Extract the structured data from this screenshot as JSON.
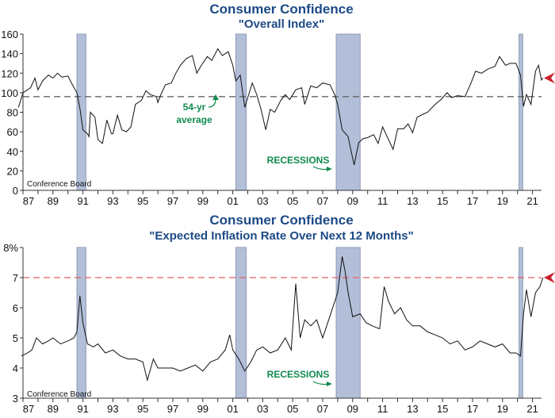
{
  "chart_data": [
    {
      "type": "line",
      "title": "Consumer Confidence",
      "subtitle": "\"Overall Index\"",
      "source": "Conference Board",
      "ylim": [
        0,
        160
      ],
      "yticks": [
        "0",
        "20",
        "40",
        "60",
        "80",
        "100",
        "120",
        "140",
        "160"
      ],
      "ytick_values": [
        0,
        20,
        40,
        60,
        80,
        100,
        120,
        140,
        160
      ],
      "xlim": [
        1986.7,
        2021.8
      ],
      "xticks": [
        "87",
        "89",
        "91",
        "93",
        "95",
        "97",
        "99",
        "01",
        "03",
        "05",
        "07",
        "09",
        "11",
        "13",
        "15",
        "17",
        "19",
        "21"
      ],
      "xtick_values": [
        1987,
        1989,
        1991,
        1993,
        1995,
        1997,
        1999,
        2001,
        2003,
        2005,
        2007,
        2009,
        2011,
        2013,
        2015,
        2017,
        2019,
        2021
      ],
      "reference_line": {
        "value": 96,
        "color": "#666666",
        "label": "54-yr average"
      },
      "annotations": {
        "average": [
          "54-yr",
          "average"
        ],
        "recessions": "RECESSIONS"
      },
      "latest_marker": 115,
      "recessions": [
        [
          1990.6,
          1991.2
        ],
        [
          2001.2,
          2001.9
        ],
        [
          2007.9,
          2009.5
        ],
        [
          2020.1,
          2020.35
        ]
      ],
      "series": [
        {
          "name": "Overall Index",
          "color": "#111111",
          "points": [
            [
              1986.7,
              85
            ],
            [
              1987,
              100
            ],
            [
              1987.5,
              105
            ],
            [
              1987.8,
              115
            ],
            [
              1988,
              103
            ],
            [
              1988.3,
              112
            ],
            [
              1988.7,
              118
            ],
            [
              1989,
              115
            ],
            [
              1989.3,
              120
            ],
            [
              1989.6,
              116
            ],
            [
              1990,
              117
            ],
            [
              1990.3,
              108
            ],
            [
              1990.6,
              100
            ],
            [
              1990.8,
              84
            ],
            [
              1991,
              62
            ],
            [
              1991.3,
              58
            ],
            [
              1991.4,
              55
            ],
            [
              1991.5,
              80
            ],
            [
              1991.8,
              75
            ],
            [
              1992,
              52
            ],
            [
              1992.3,
              48
            ],
            [
              1992.6,
              72
            ],
            [
              1992.9,
              58
            ],
            [
              1993,
              58
            ],
            [
              1993.3,
              77
            ],
            [
              1993.6,
              62
            ],
            [
              1993.9,
              60
            ],
            [
              1994.2,
              65
            ],
            [
              1994.5,
              88
            ],
            [
              1994.9,
              92
            ],
            [
              1995.2,
              102
            ],
            [
              1995.5,
              98
            ],
            [
              1995.9,
              96
            ],
            [
              1996,
              90
            ],
            [
              1996.2,
              98
            ],
            [
              1996.5,
              108
            ],
            [
              1996.9,
              110
            ],
            [
              1997.2,
              120
            ],
            [
              1997.5,
              128
            ],
            [
              1997.9,
              135
            ],
            [
              1998.3,
              138
            ],
            [
              1998.6,
              120
            ],
            [
              1998.9,
              128
            ],
            [
              1999.3,
              137
            ],
            [
              1999.6,
              133
            ],
            [
              2000,
              145
            ],
            [
              2000.3,
              138
            ],
            [
              2000.7,
              142
            ],
            [
              2001,
              128
            ],
            [
              2001.2,
              112
            ],
            [
              2001.5,
              118
            ],
            [
              2001.8,
              85
            ],
            [
              2002,
              95
            ],
            [
              2002.3,
              110
            ],
            [
              2002.6,
              98
            ],
            [
              2002.9,
              82
            ],
            [
              2003.2,
              62
            ],
            [
              2003.5,
              83
            ],
            [
              2003.8,
              80
            ],
            [
              2004.2,
              92
            ],
            [
              2004.5,
              98
            ],
            [
              2004.8,
              93
            ],
            [
              2005.2,
              103
            ],
            [
              2005.6,
              105
            ],
            [
              2005.8,
              88
            ],
            [
              2006.2,
              107
            ],
            [
              2006.6,
              105
            ],
            [
              2007,
              110
            ],
            [
              2007.5,
              108
            ],
            [
              2007.8,
              98
            ],
            [
              2008,
              88
            ],
            [
              2008.3,
              62
            ],
            [
              2008.7,
              55
            ],
            [
              2008.9,
              40
            ],
            [
              2009.1,
              26
            ],
            [
              2009.4,
              49
            ],
            [
              2009.7,
              53
            ],
            [
              2010,
              54
            ],
            [
              2010.4,
              57
            ],
            [
              2010.7,
              48
            ],
            [
              2011,
              65
            ],
            [
              2011.3,
              55
            ],
            [
              2011.7,
              42
            ],
            [
              2012,
              63
            ],
            [
              2012.4,
              63
            ],
            [
              2012.7,
              68
            ],
            [
              2013,
              59
            ],
            [
              2013.3,
              75
            ],
            [
              2013.7,
              78
            ],
            [
              2014,
              80
            ],
            [
              2014.5,
              88
            ],
            [
              2014.9,
              93
            ],
            [
              2015.3,
              100
            ],
            [
              2015.6,
              95
            ],
            [
              2016,
              97
            ],
            [
              2016.5,
              96
            ],
            [
              2016.9,
              110
            ],
            [
              2017.2,
              122
            ],
            [
              2017.6,
              120
            ],
            [
              2018,
              124
            ],
            [
              2018.5,
              127
            ],
            [
              2018.8,
              137
            ],
            [
              2019.2,
              128
            ],
            [
              2019.5,
              130
            ],
            [
              2019.9,
              130
            ],
            [
              2020.2,
              118
            ],
            [
              2020.4,
              86
            ],
            [
              2020.6,
              98
            ],
            [
              2020.9,
              88
            ],
            [
              2021.2,
              122
            ],
            [
              2021.4,
              128
            ],
            [
              2021.6,
              113
            ],
            [
              2021.7,
              115
            ]
          ]
        }
      ]
    },
    {
      "type": "line",
      "title": "Consumer Confidence",
      "subtitle": "\"Expected Inflation Rate Over Next 12 Months\"",
      "source": "Conference Board",
      "ylim": [
        3,
        8
      ],
      "yticks": [
        "3",
        "4",
        "5",
        "6",
        "7",
        "8%"
      ],
      "ytick_values": [
        3,
        4,
        5,
        6,
        7,
        8
      ],
      "xlim": [
        1986.7,
        2021.8
      ],
      "xticks": [
        "87",
        "89",
        "91",
        "93",
        "95",
        "97",
        "99",
        "01",
        "03",
        "05",
        "07",
        "09",
        "11",
        "13",
        "15",
        "17",
        "19",
        "21"
      ],
      "xtick_values": [
        1987,
        1989,
        1991,
        1993,
        1995,
        1997,
        1999,
        2001,
        2003,
        2005,
        2007,
        2009,
        2011,
        2013,
        2015,
        2017,
        2019,
        2021
      ],
      "reference_line": {
        "value": 7,
        "color": "#e06060"
      },
      "annotations": {
        "recessions": "RECESSIONS"
      },
      "latest_marker": 7.0,
      "recessions": [
        [
          1990.6,
          1991.2
        ],
        [
          2001.2,
          2001.9
        ],
        [
          2007.9,
          2009.5
        ],
        [
          2020.1,
          2020.35
        ]
      ],
      "series": [
        {
          "name": "Expected Inflation Rate",
          "color": "#111111",
          "points": [
            [
              1986.9,
              4.4
            ],
            [
              1987.3,
              4.5
            ],
            [
              1987.6,
              4.6
            ],
            [
              1987.9,
              5.0
            ],
            [
              1988.3,
              4.8
            ],
            [
              1988.7,
              4.9
            ],
            [
              1989,
              5.0
            ],
            [
              1989.5,
              4.8
            ],
            [
              1990,
              4.9
            ],
            [
              1990.4,
              5.0
            ],
            [
              1990.6,
              5.2
            ],
            [
              1990.8,
              6.4
            ],
            [
              1991,
              5.5
            ],
            [
              1991.3,
              4.8
            ],
            [
              1991.7,
              4.7
            ],
            [
              1992,
              4.8
            ],
            [
              1992.5,
              4.5
            ],
            [
              1993,
              4.6
            ],
            [
              1993.5,
              4.4
            ],
            [
              1994,
              4.3
            ],
            [
              1994.5,
              4.3
            ],
            [
              1995,
              4.2
            ],
            [
              1995.3,
              3.6
            ],
            [
              1995.7,
              4.3
            ],
            [
              1996,
              4.0
            ],
            [
              1996.5,
              4.0
            ],
            [
              1997,
              4.0
            ],
            [
              1997.5,
              3.9
            ],
            [
              1998,
              4.0
            ],
            [
              1998.5,
              4.1
            ],
            [
              1999,
              3.9
            ],
            [
              1999.5,
              4.2
            ],
            [
              2000,
              4.3
            ],
            [
              2000.5,
              4.6
            ],
            [
              2000.8,
              5.1
            ],
            [
              2001,
              4.6
            ],
            [
              2001.4,
              4.3
            ],
            [
              2001.8,
              3.9
            ],
            [
              2002.2,
              4.2
            ],
            [
              2002.6,
              4.6
            ],
            [
              2003,
              4.7
            ],
            [
              2003.5,
              4.5
            ],
            [
              2004,
              4.6
            ],
            [
              2004.5,
              5.0
            ],
            [
              2004.9,
              4.6
            ],
            [
              2005.2,
              6.8
            ],
            [
              2005.5,
              5.0
            ],
            [
              2005.8,
              5.6
            ],
            [
              2006.2,
              5.4
            ],
            [
              2006.6,
              5.6
            ],
            [
              2007,
              5.0
            ],
            [
              2007.4,
              5.6
            ],
            [
              2007.8,
              6.2
            ],
            [
              2008,
              6.5
            ],
            [
              2008.3,
              7.7
            ],
            [
              2008.5,
              7.2
            ],
            [
              2008.7,
              6.5
            ],
            [
              2009,
              5.7
            ],
            [
              2009.5,
              5.8
            ],
            [
              2009.9,
              5.5
            ],
            [
              2010.3,
              5.4
            ],
            [
              2010.8,
              5.3
            ],
            [
              2011.1,
              6.7
            ],
            [
              2011.4,
              6.2
            ],
            [
              2011.8,
              5.8
            ],
            [
              2012.2,
              6.0
            ],
            [
              2012.6,
              5.6
            ],
            [
              2013,
              5.4
            ],
            [
              2013.5,
              5.4
            ],
            [
              2014,
              5.2
            ],
            [
              2014.5,
              5.1
            ],
            [
              2015,
              5.0
            ],
            [
              2015.5,
              4.8
            ],
            [
              2016,
              4.9
            ],
            [
              2016.5,
              4.6
            ],
            [
              2017,
              4.7
            ],
            [
              2017.5,
              4.9
            ],
            [
              2018,
              4.8
            ],
            [
              2018.5,
              4.7
            ],
            [
              2019,
              4.8
            ],
            [
              2019.5,
              4.5
            ],
            [
              2019.9,
              4.5
            ],
            [
              2020.2,
              4.4
            ],
            [
              2020.4,
              5.8
            ],
            [
              2020.6,
              6.6
            ],
            [
              2020.9,
              5.7
            ],
            [
              2021.2,
              6.5
            ],
            [
              2021.5,
              6.7
            ],
            [
              2021.7,
              7.0
            ]
          ]
        }
      ]
    }
  ]
}
